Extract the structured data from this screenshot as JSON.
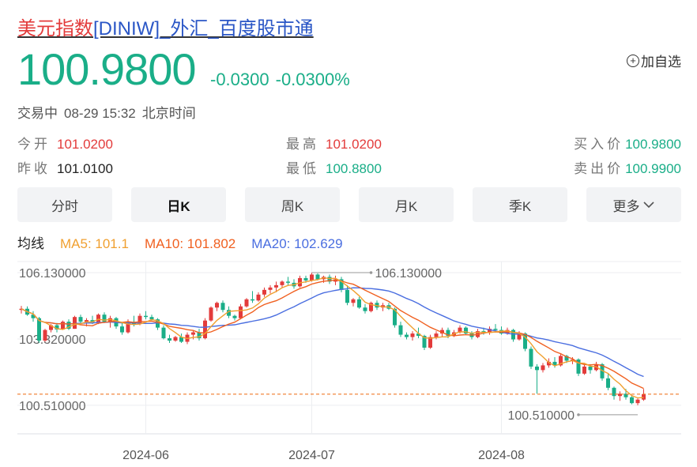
{
  "header": {
    "name": "美元指数",
    "rest": "[DINIW]_外汇_百度股市通",
    "price": "100.9800",
    "change": "-0.0300",
    "change_pct": "-0.0300%",
    "add_label": "加自选",
    "status": "交易中",
    "datetime": "08-29 15:32",
    "timezone": "北京时间"
  },
  "quote": {
    "open_label": "今开",
    "open": "101.0200",
    "prev_label": "昨收",
    "prev": "101.0100",
    "high_label": "最高",
    "high": "101.0200",
    "low_label": "最低",
    "low": "100.8800",
    "bid_label": "买入价",
    "bid": "100.9800",
    "ask_label": "卖出价",
    "ask": "100.9900"
  },
  "tabs": [
    "分时",
    "日K",
    "周K",
    "月K",
    "季K",
    "更多"
  ],
  "active_tab": 1,
  "ma": {
    "label": "均线",
    "ma5": "MA5: 101.1",
    "ma10": "MA10: 101.802",
    "ma20": "MA20: 102.629"
  },
  "colors": {
    "up": "#e33b3b",
    "down": "#1aae88",
    "ma5": "#f0a030",
    "ma10": "#f06020",
    "ma20": "#4a6ee0",
    "accent": "#2a56c6"
  },
  "chart_data": {
    "type": "candlestick",
    "y_ticks": [
      "106.130000",
      "103.320000",
      "100.510000"
    ],
    "ylim": [
      99.3,
      106.6
    ],
    "x_ticks": [
      "2024-06",
      "2024-07",
      "2024-08"
    ],
    "annotations": {
      "max": "106.130000",
      "min": "100.510000"
    },
    "last_price": 100.98,
    "candles": [
      [
        104.55,
        104.72,
        104.4,
        104.6
      ],
      [
        104.6,
        104.7,
        104.3,
        104.35
      ],
      [
        104.35,
        104.5,
        104.05,
        104.2
      ],
      [
        104.2,
        104.25,
        103.15,
        103.25
      ],
      [
        103.25,
        103.75,
        103.2,
        103.7
      ],
      [
        103.7,
        103.95,
        103.6,
        103.9
      ],
      [
        103.9,
        104.0,
        103.6,
        103.72
      ],
      [
        103.72,
        104.1,
        103.7,
        104.05
      ],
      [
        104.05,
        104.15,
        103.7,
        103.75
      ],
      [
        103.75,
        104.3,
        103.75,
        104.25
      ],
      [
        104.25,
        104.35,
        104.0,
        104.05
      ],
      [
        104.05,
        104.2,
        103.85,
        104.12
      ],
      [
        104.12,
        104.3,
        103.95,
        104.0
      ],
      [
        104.0,
        104.4,
        103.95,
        104.35
      ],
      [
        104.35,
        104.45,
        104.0,
        104.05
      ],
      [
        104.05,
        104.3,
        103.8,
        104.2
      ],
      [
        104.2,
        104.25,
        103.75,
        103.85
      ],
      [
        103.85,
        104.0,
        103.5,
        103.6
      ],
      [
        103.6,
        104.15,
        103.55,
        104.05
      ],
      [
        104.05,
        104.3,
        103.85,
        103.95
      ],
      [
        103.95,
        104.4,
        103.9,
        104.3
      ],
      [
        104.3,
        104.5,
        104.15,
        104.25
      ],
      [
        104.25,
        104.35,
        104.1,
        104.15
      ],
      [
        104.15,
        104.2,
        103.7,
        103.8
      ],
      [
        103.8,
        103.9,
        103.3,
        103.35
      ],
      [
        103.35,
        103.5,
        103.15,
        103.25
      ],
      [
        103.25,
        103.45,
        103.2,
        103.4
      ],
      [
        103.4,
        103.55,
        103.15,
        103.2
      ],
      [
        103.2,
        103.6,
        103.1,
        103.5
      ],
      [
        103.5,
        103.7,
        103.3,
        103.6
      ],
      [
        103.6,
        103.75,
        103.25,
        103.35
      ],
      [
        103.35,
        104.2,
        103.3,
        104.1
      ],
      [
        104.1,
        104.7,
        104.05,
        104.65
      ],
      [
        104.65,
        104.9,
        104.5,
        104.85
      ],
      [
        104.85,
        104.95,
        104.45,
        104.55
      ],
      [
        104.55,
        104.7,
        104.2,
        104.3
      ],
      [
        104.3,
        104.35,
        104.1,
        104.2
      ],
      [
        104.2,
        104.8,
        104.15,
        104.7
      ],
      [
        104.7,
        105.05,
        104.65,
        105.0
      ],
      [
        105.0,
        105.35,
        104.85,
        104.95
      ],
      [
        104.95,
        105.3,
        104.9,
        105.2
      ],
      [
        105.2,
        105.5,
        105.1,
        105.4
      ],
      [
        105.4,
        105.6,
        105.25,
        105.5
      ],
      [
        105.5,
        105.75,
        105.3,
        105.6
      ],
      [
        105.6,
        105.8,
        105.5,
        105.75
      ],
      [
        105.75,
        105.95,
        105.6,
        105.7
      ],
      [
        105.7,
        105.85,
        105.45,
        105.55
      ],
      [
        105.55,
        106.0,
        105.5,
        105.9
      ],
      [
        105.9,
        106.0,
        105.7,
        105.8
      ],
      [
        105.8,
        106.13,
        105.75,
        106.05
      ],
      [
        106.05,
        106.1,
        105.8,
        105.85
      ],
      [
        105.85,
        106.0,
        105.7,
        105.95
      ],
      [
        105.95,
        106.05,
        105.65,
        105.75
      ],
      [
        105.75,
        106.0,
        105.6,
        105.85
      ],
      [
        105.85,
        105.95,
        105.3,
        105.4
      ],
      [
        105.4,
        105.6,
        104.75,
        104.85
      ],
      [
        104.85,
        105.05,
        104.7,
        105.0
      ],
      [
        105.0,
        105.1,
        104.6,
        104.65
      ],
      [
        104.65,
        104.8,
        104.4,
        104.5
      ],
      [
        104.5,
        104.9,
        104.45,
        104.85
      ],
      [
        104.85,
        104.95,
        104.55,
        104.65
      ],
      [
        104.65,
        104.85,
        104.5,
        104.75
      ],
      [
        104.75,
        104.85,
        104.55,
        104.6
      ],
      [
        104.6,
        104.65,
        103.8,
        103.9
      ],
      [
        103.9,
        104.05,
        103.4,
        103.5
      ],
      [
        103.5,
        103.6,
        103.3,
        103.4
      ],
      [
        103.4,
        103.65,
        103.25,
        103.55
      ],
      [
        103.55,
        103.8,
        103.35,
        103.45
      ],
      [
        103.45,
        103.5,
        102.85,
        102.95
      ],
      [
        102.95,
        103.5,
        102.9,
        103.4
      ],
      [
        103.4,
        103.65,
        103.3,
        103.55
      ],
      [
        103.55,
        103.8,
        103.4,
        103.7
      ],
      [
        103.7,
        103.8,
        103.35,
        103.45
      ],
      [
        103.45,
        103.7,
        103.4,
        103.6
      ],
      [
        103.6,
        103.9,
        103.55,
        103.8
      ],
      [
        103.8,
        103.85,
        103.5,
        103.55
      ],
      [
        103.55,
        103.65,
        103.3,
        103.4
      ],
      [
        103.4,
        103.75,
        103.35,
        103.65
      ],
      [
        103.65,
        103.8,
        103.5,
        103.6
      ],
      [
        103.6,
        103.85,
        103.5,
        103.75
      ],
      [
        103.75,
        103.95,
        103.6,
        103.7
      ],
      [
        103.7,
        103.85,
        103.5,
        103.55
      ],
      [
        103.55,
        103.8,
        103.5,
        103.7
      ],
      [
        103.7,
        103.75,
        103.2,
        103.3
      ],
      [
        103.3,
        103.65,
        103.25,
        103.55
      ],
      [
        103.55,
        103.6,
        102.8,
        102.9
      ],
      [
        102.9,
        103.0,
        102.05,
        102.15
      ],
      [
        102.15,
        102.25,
        101.0,
        102.0
      ],
      [
        102.0,
        102.3,
        101.9,
        102.2
      ],
      [
        102.2,
        102.5,
        102.1,
        102.35
      ],
      [
        102.35,
        102.55,
        102.1,
        102.2
      ],
      [
        102.2,
        102.7,
        102.15,
        102.6
      ],
      [
        102.6,
        102.65,
        102.3,
        102.4
      ],
      [
        102.4,
        102.55,
        102.25,
        102.45
      ],
      [
        102.45,
        102.5,
        101.75,
        101.85
      ],
      [
        101.85,
        102.25,
        101.8,
        102.15
      ],
      [
        102.15,
        102.25,
        101.85,
        102.0
      ],
      [
        102.0,
        102.35,
        101.95,
        102.25
      ],
      [
        102.25,
        102.3,
        101.55,
        101.65
      ],
      [
        101.65,
        101.85,
        101.15,
        101.25
      ],
      [
        101.25,
        101.3,
        100.75,
        100.9
      ],
      [
        100.9,
        101.1,
        100.7,
        101.0
      ],
      [
        101.0,
        101.2,
        100.75,
        100.85
      ],
      [
        100.85,
        100.9,
        100.55,
        100.6
      ],
      [
        100.6,
        100.8,
        100.51,
        100.75
      ],
      [
        100.75,
        101.2,
        100.7,
        100.98
      ]
    ]
  }
}
